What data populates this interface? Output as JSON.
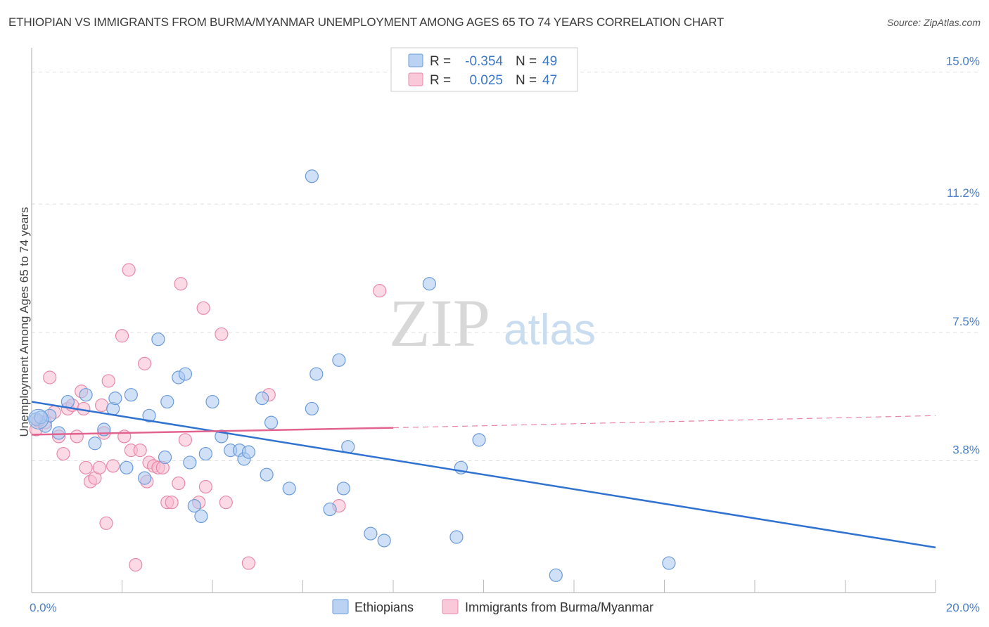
{
  "title": "ETHIOPIAN VS IMMIGRANTS FROM BURMA/MYANMAR UNEMPLOYMENT AMONG AGES 65 TO 74 YEARS CORRELATION CHART",
  "source": "Source: ZipAtlas.com",
  "watermark": {
    "zip": "ZIP",
    "atlas": "atlas"
  },
  "legend_box": {
    "rows": [
      {
        "r_label": "R =",
        "r_value": "-0.354",
        "n_label": "N =",
        "n_value": "49"
      },
      {
        "r_label": "R =",
        "r_value": "0.025",
        "n_label": "N =",
        "n_value": "47"
      }
    ]
  },
  "colors": {
    "ethiopians_fill": "#aac8f0",
    "ethiopians_stroke": "#6b9bd8",
    "ethiopians_line": "#2f72d0",
    "burma_fill": "#f7bcd0",
    "burma_stroke": "#e889a8",
    "burma_line": "#e2648e",
    "grid": "#dddddd",
    "axis_tick_text": "#4a80c8"
  },
  "chart_data": {
    "type": "scatter",
    "title": "ETHIOPIAN VS IMMIGRANTS FROM BURMA/MYANMAR UNEMPLOYMENT AMONG AGES 65 TO 74 YEARS CORRELATION CHART",
    "xlabel": "",
    "ylabel": "Unemployment Among Ages 65 to 74 years",
    "xlim": [
      0,
      20
    ],
    "ylim": [
      0,
      15.5
    ],
    "x_tick_labels": [
      {
        "value": 0,
        "label": "0.0%"
      },
      {
        "value": 20,
        "label": "20.0%"
      }
    ],
    "y_tick_labels": [
      {
        "value": 3.8,
        "label": "3.8%"
      },
      {
        "value": 7.5,
        "label": "7.5%"
      },
      {
        "value": 11.2,
        "label": "11.2%"
      },
      {
        "value": 15.0,
        "label": "15.0%"
      }
    ],
    "grid": true,
    "legend_position": "top-center",
    "series": [
      {
        "name": "Ethiopians",
        "r": -0.354,
        "n": 49,
        "trend": {
          "x": [
            0,
            20
          ],
          "y": [
            5.5,
            1.3
          ]
        },
        "points": [
          [
            0.1,
            5.0
          ],
          [
            0.3,
            4.8
          ],
          [
            0.4,
            5.1
          ],
          [
            0.6,
            4.6
          ],
          [
            0.8,
            5.5
          ],
          [
            1.2,
            5.7
          ],
          [
            1.4,
            4.3
          ],
          [
            1.6,
            4.7
          ],
          [
            1.8,
            5.3
          ],
          [
            1.85,
            5.6
          ],
          [
            2.1,
            3.6
          ],
          [
            2.2,
            5.7
          ],
          [
            2.5,
            3.3
          ],
          [
            2.6,
            5.1
          ],
          [
            2.8,
            7.3
          ],
          [
            2.95,
            3.9
          ],
          [
            3.0,
            5.5
          ],
          [
            3.25,
            6.2
          ],
          [
            3.4,
            6.3
          ],
          [
            3.5,
            3.75
          ],
          [
            3.6,
            2.5
          ],
          [
            3.75,
            2.2
          ],
          [
            3.85,
            4.0
          ],
          [
            4.0,
            5.5
          ],
          [
            4.2,
            4.5
          ],
          [
            4.4,
            4.1
          ],
          [
            4.6,
            4.1
          ],
          [
            4.7,
            3.85
          ],
          [
            4.8,
            4.05
          ],
          [
            5.1,
            5.6
          ],
          [
            5.2,
            3.4
          ],
          [
            5.3,
            4.9
          ],
          [
            5.7,
            3.0
          ],
          [
            6.2,
            12.0
          ],
          [
            6.2,
            5.3
          ],
          [
            6.3,
            6.3
          ],
          [
            6.6,
            2.4
          ],
          [
            6.8,
            6.7
          ],
          [
            6.9,
            3.0
          ],
          [
            7.0,
            4.2
          ],
          [
            7.5,
            1.7
          ],
          [
            7.8,
            1.5
          ],
          [
            8.8,
            8.9
          ],
          [
            9.4,
            1.6
          ],
          [
            9.5,
            3.6
          ],
          [
            9.9,
            4.4
          ],
          [
            11.6,
            0.5
          ],
          [
            14.1,
            0.85
          ],
          [
            0.2,
            5.05
          ]
        ]
      },
      {
        "name": "Immigrants from Burma/Myanmar",
        "r": 0.025,
        "n": 47,
        "trend": {
          "x": [
            0,
            8
          ],
          "y": [
            4.55,
            4.75
          ]
        },
        "trend_dashed": {
          "x": [
            8,
            20
          ],
          "y": [
            4.75,
            5.1
          ]
        },
        "points": [
          [
            0.1,
            4.7
          ],
          [
            0.3,
            4.9
          ],
          [
            0.4,
            6.2
          ],
          [
            0.5,
            5.2
          ],
          [
            0.6,
            4.5
          ],
          [
            0.7,
            4.0
          ],
          [
            0.8,
            5.3
          ],
          [
            0.9,
            5.4
          ],
          [
            1.0,
            4.5
          ],
          [
            1.1,
            5.8
          ],
          [
            1.15,
            5.3
          ],
          [
            1.2,
            3.6
          ],
          [
            1.3,
            3.2
          ],
          [
            1.4,
            3.3
          ],
          [
            1.5,
            3.6
          ],
          [
            1.55,
            5.4
          ],
          [
            1.6,
            4.6
          ],
          [
            1.65,
            2.0
          ],
          [
            1.7,
            6.1
          ],
          [
            1.8,
            3.65
          ],
          [
            2.0,
            7.4
          ],
          [
            2.05,
            4.5
          ],
          [
            2.15,
            9.3
          ],
          [
            2.2,
            4.1
          ],
          [
            2.3,
            0.8
          ],
          [
            2.4,
            4.1
          ],
          [
            2.5,
            6.6
          ],
          [
            2.55,
            3.2
          ],
          [
            2.6,
            3.75
          ],
          [
            2.7,
            3.65
          ],
          [
            2.8,
            3.6
          ],
          [
            2.9,
            3.6
          ],
          [
            3.0,
            2.6
          ],
          [
            3.1,
            2.6
          ],
          [
            3.25,
            3.15
          ],
          [
            3.3,
            8.9
          ],
          [
            3.4,
            4.4
          ],
          [
            3.7,
            2.6
          ],
          [
            3.8,
            8.2
          ],
          [
            3.85,
            3.05
          ],
          [
            4.2,
            7.45
          ],
          [
            4.3,
            2.6
          ],
          [
            4.8,
            0.85
          ],
          [
            5.25,
            5.7
          ],
          [
            6.8,
            2.5
          ],
          [
            7.7,
            8.7
          ],
          [
            0.15,
            4.95
          ]
        ]
      }
    ]
  },
  "bottom_legend": [
    {
      "label": "Ethiopians"
    },
    {
      "label": "Immigrants from Burma/Myanmar"
    }
  ]
}
